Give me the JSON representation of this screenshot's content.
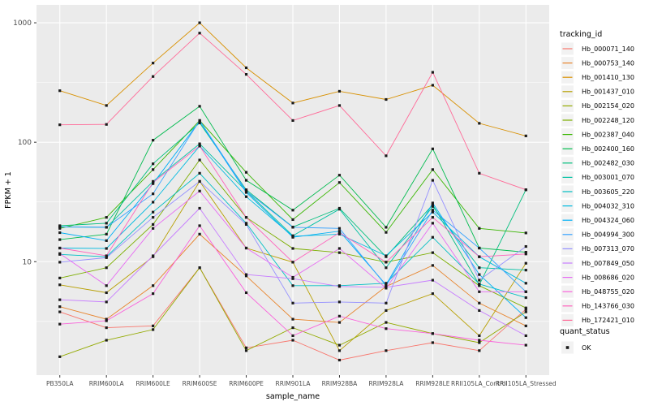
{
  "chart_data": {
    "type": "line",
    "title": "",
    "xlabel": "sample_name",
    "ylabel": "FPKM + 1",
    "x_categories": [
      "PB350LA",
      "RRIM600LA",
      "RRIM600LE",
      "RRIM600SE",
      "RRIM600PE",
      "RRIM901LA",
      "RRIM928BA",
      "RRIM928LA",
      "RRIM928LE",
      "RRII105LA_Control",
      "RRII105LA_Stressed"
    ],
    "y_scale": "log10",
    "y_ticks": [
      "10",
      "100",
      "1000"
    ],
    "ylim": [
      1.1,
      1400
    ],
    "grid": "on",
    "legend_position": "right",
    "panel_bg": "#EBEBEB",
    "grid_color": "#FFFFFF",
    "axis_text_color": "#4D4D4D",
    "marker": "black-square",
    "legend_title": "tracking_id",
    "legend2": {
      "title": "quant_status",
      "items": [
        {
          "label": "OK",
          "marker": "black-square"
        }
      ]
    },
    "series": [
      {
        "name": "Hb_000071_140",
        "color": "#F8766D",
        "values": [
          3.8,
          2.8,
          2.9,
          8.9,
          1.9,
          2.2,
          1.5,
          1.8,
          2.1,
          1.8,
          4.0
        ]
      },
      {
        "name": "Hb_000753_140",
        "color": "#E8842C",
        "values": [
          4.2,
          3.3,
          6.3,
          17,
          7.6,
          3.3,
          3.1,
          6.2,
          9.3,
          4.5,
          2.9
        ]
      },
      {
        "name": "Hb_001410_130",
        "color": "#D89000",
        "values": [
          270,
          203,
          460,
          1000,
          420,
          213,
          267,
          228,
          300,
          144,
          113
        ]
      },
      {
        "name": "Hb_001437_010",
        "color": "#B79F00",
        "values": [
          6.4,
          5.5,
          11,
          47,
          13,
          9.9,
          1.8,
          3.9,
          5.4,
          2.4,
          9.7
        ]
      },
      {
        "name": "Hb_002154_020",
        "color": "#93AA00",
        "values": [
          1.6,
          2.2,
          2.7,
          8.9,
          1.8,
          2.8,
          2.0,
          3.1,
          2.5,
          2.1,
          3.8
        ]
      },
      {
        "name": "Hb_002248_120",
        "color": "#7CAE00",
        "values": [
          7.3,
          8.9,
          20.5,
          71,
          23.5,
          12.9,
          11.9,
          9.9,
          11.9,
          6.3,
          4.1
        ]
      },
      {
        "name": "Hb_002387_040",
        "color": "#39B600",
        "values": [
          19,
          23.5,
          59,
          152,
          56,
          22.5,
          46,
          17.6,
          59,
          19,
          17.4
        ]
      },
      {
        "name": "Hb_002400_160",
        "color": "#00BB4E",
        "values": [
          15.3,
          17,
          104,
          200,
          48,
          27,
          53,
          19.4,
          88,
          13,
          12
        ]
      },
      {
        "name": "Hb_002482_030",
        "color": "#00BF7D",
        "values": [
          20,
          21,
          66,
          145,
          40,
          19.5,
          28,
          11,
          30,
          6.4,
          40
        ]
      },
      {
        "name": "Hb_003001_070",
        "color": "#00C1A3",
        "values": [
          19.5,
          19.4,
          47,
          97,
          39,
          16.5,
          27.5,
          8.9,
          29,
          8.9,
          8.5
        ]
      },
      {
        "name": "Hb_003605_220",
        "color": "#00BFC4",
        "values": [
          11.5,
          11,
          26,
          55,
          21,
          6.3,
          6.3,
          6.6,
          16,
          6.5,
          5.0
        ]
      },
      {
        "name": "Hb_004032_310",
        "color": "#00BAE0",
        "values": [
          13,
          12.9,
          31.5,
          93,
          35,
          16.3,
          17,
          11.2,
          26,
          11,
          6.6
        ]
      },
      {
        "name": "Hb_004324_060",
        "color": "#00B0F6",
        "values": [
          17.5,
          15,
          45,
          150,
          38,
          16,
          18,
          6.4,
          31,
          7.8,
          3.4
        ]
      },
      {
        "name": "Hb_004994_300",
        "color": "#35A2FF",
        "values": [
          19.6,
          19.4,
          37,
          152,
          39,
          19.4,
          19,
          6.3,
          27,
          13,
          5.6
        ]
      },
      {
        "name": "Hb_007313_070",
        "color": "#9590FF",
        "values": [
          9.9,
          10.8,
          23.5,
          47,
          20.5,
          4.5,
          4.6,
          4.5,
          48,
          7.0,
          13.4
        ]
      },
      {
        "name": "Hb_007849_050",
        "color": "#C77CFF",
        "values": [
          4.8,
          4.6,
          11.2,
          28,
          7.8,
          7.2,
          6.2,
          6.1,
          7.0,
          3.9,
          2.4
        ]
      },
      {
        "name": "Hb_008686_020",
        "color": "#E76BF3",
        "values": [
          11.7,
          6.3,
          19,
          39,
          13,
          7.4,
          12.9,
          6.0,
          21,
          5.6,
          5.6
        ]
      },
      {
        "name": "Hb_048755_020",
        "color": "#FA62DB",
        "values": [
          3.0,
          3.2,
          5.4,
          20,
          5.5,
          2.4,
          3.5,
          2.75,
          2.5,
          2.2,
          2.0
        ]
      },
      {
        "name": "Hb_143766_030",
        "color": "#FF62BC",
        "values": [
          13,
          11.2,
          46,
          93,
          23.5,
          9.9,
          17.5,
          9.9,
          23.5,
          11,
          11.6
        ]
      },
      {
        "name": "Hb_172421_010",
        "color": "#FF6A98",
        "values": [
          140,
          141,
          355,
          820,
          370,
          152,
          203,
          77,
          385,
          55,
          40
        ]
      }
    ]
  }
}
